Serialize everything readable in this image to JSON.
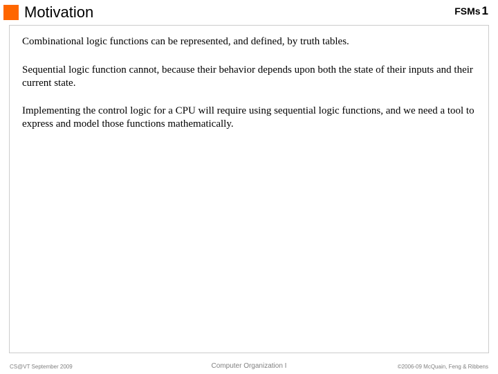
{
  "header": {
    "title": "Motivation",
    "topic": "FSMs",
    "page_number": "1",
    "accent_color": "#ff6600"
  },
  "body": {
    "paragraphs": [
      "Combinational logic functions can be represented, and defined, by truth tables.",
      "Sequential logic function cannot, because their behavior depends upon both the state of their inputs and their current state.",
      "Implementing the control logic for a CPU will require using sequential logic functions, and we need a tool to express and model those functions mathematically."
    ]
  },
  "footer": {
    "left": "CS@VT September 2009",
    "center": "Computer Organization I",
    "right": "©2006-09  McQuain, Feng & Ribbens"
  },
  "styles": {
    "title_fontsize": 22,
    "body_fontsize": 15,
    "footer_fontsize": 8,
    "border_color": "#cccccc",
    "text_color": "#000000",
    "footer_color": "#808080"
  }
}
